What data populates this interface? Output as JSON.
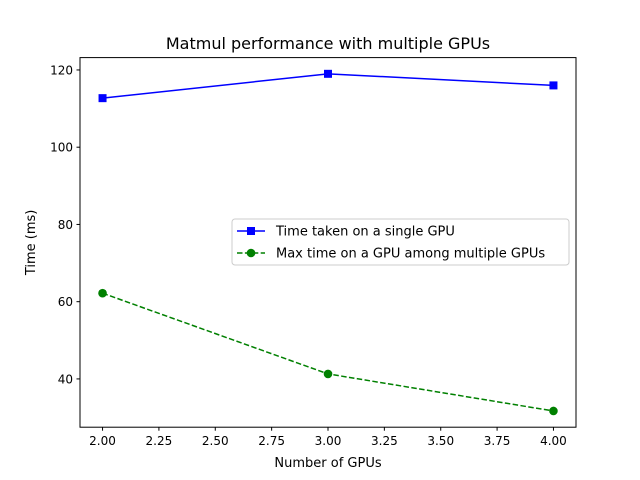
{
  "chart_data": {
    "type": "line",
    "title": "Matmul performance with multiple GPUs",
    "xlabel": "Number of GPUs",
    "ylabel": "Time (ms)",
    "x": [
      2.0,
      3.0,
      4.0
    ],
    "xlim": [
      1.9,
      4.1
    ],
    "ylim": [
      27.5,
      123.2
    ],
    "xticks": [
      "2.00",
      "2.25",
      "2.50",
      "2.75",
      "3.00",
      "3.25",
      "3.50",
      "3.75",
      "4.00"
    ],
    "yticks": [
      "40",
      "60",
      "80",
      "100",
      "120"
    ],
    "grid": false,
    "legend_position": "center-right",
    "series": [
      {
        "name": "Time taken on a single GPU",
        "values": [
          112.7,
          119.0,
          116.0
        ],
        "color": "#0000ff",
        "linestyle": "solid",
        "marker": "square"
      },
      {
        "name": "Max time on a GPU among multiple GPUs",
        "values": [
          62.2,
          41.3,
          31.7
        ],
        "color": "#008000",
        "linestyle": "dashed",
        "marker": "circle"
      }
    ]
  }
}
